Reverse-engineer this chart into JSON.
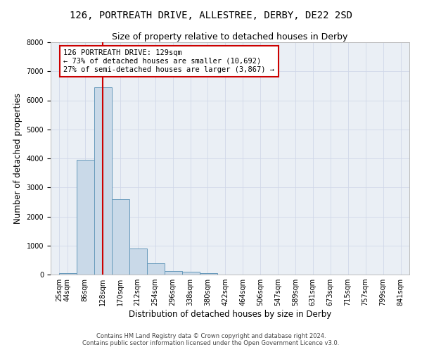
{
  "title": "126, PORTREATH DRIVE, ALLESTREE, DERBY, DE22 2SD",
  "subtitle": "Size of property relative to detached houses in Derby",
  "xlabel": "Distribution of detached houses by size in Derby",
  "ylabel": "Number of detached properties",
  "footer_line1": "Contains HM Land Registry data © Crown copyright and database right 2024.",
  "footer_line2": "Contains public sector information licensed under the Open Government Licence v3.0.",
  "bar_edges": [
    25,
    67,
    109,
    151,
    193,
    235,
    277,
    319,
    361,
    403,
    445,
    487,
    529,
    571,
    613,
    655,
    697,
    739,
    781,
    823
  ],
  "bar_heights": [
    50,
    3950,
    6450,
    2600,
    900,
    380,
    130,
    90,
    60,
    10,
    0,
    0,
    0,
    0,
    0,
    0,
    0,
    0,
    0
  ],
  "bar_color": "#c9d9e8",
  "bar_edgecolor": "#6699bb",
  "property_size": 129,
  "vline_color": "#cc0000",
  "annotation_text": "126 PORTREATH DRIVE: 129sqm\n← 73% of detached houses are smaller (10,692)\n27% of semi-detached houses are larger (3,867) →",
  "annotation_box_color": "#cc0000",
  "ylim": [
    0,
    8000
  ],
  "yticks": [
    0,
    1000,
    2000,
    3000,
    4000,
    5000,
    6000,
    7000,
    8000
  ],
  "xtick_labels": [
    "25sqm",
    "44sqm",
    "86sqm",
    "128sqm",
    "170sqm",
    "212sqm",
    "254sqm",
    "296sqm",
    "338sqm",
    "380sqm",
    "422sqm",
    "464sqm",
    "506sqm",
    "547sqm",
    "589sqm",
    "631sqm",
    "673sqm",
    "715sqm",
    "757sqm",
    "799sqm",
    "841sqm"
  ],
  "xtick_positions": [
    25,
    44,
    86,
    128,
    170,
    212,
    254,
    296,
    338,
    380,
    422,
    464,
    506,
    547,
    589,
    631,
    673,
    715,
    757,
    799,
    841
  ],
  "xlim": [
    4,
    862
  ],
  "grid_color": "#d0d8e8",
  "background_color": "#eaeff5",
  "title_fontsize": 10,
  "subtitle_fontsize": 9,
  "axis_label_fontsize": 8.5,
  "tick_fontsize": 7,
  "annotation_fontsize": 7.5,
  "figwidth": 6.0,
  "figheight": 5.0,
  "dpi": 100
}
